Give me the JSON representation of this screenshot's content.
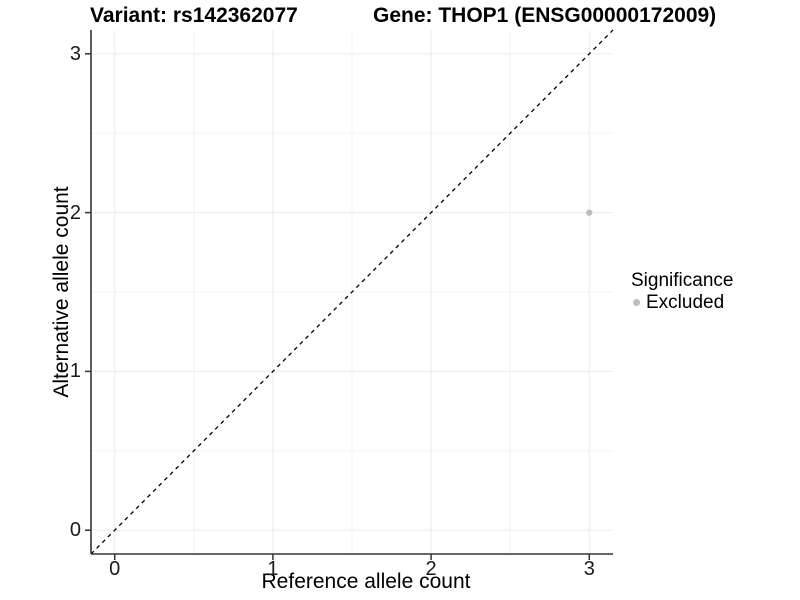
{
  "page": {
    "background": "#ffffff"
  },
  "chart_data": {
    "type": "scatter",
    "title_left": "Variant: rs142362077",
    "title_right": "Gene: THOP1 (ENSG00000172009)",
    "xlabel": "Reference allele count",
    "ylabel": "Alternative allele count",
    "xlim": [
      -0.15,
      3.15
    ],
    "ylim": [
      -0.15,
      3.15
    ],
    "xticks": [
      0,
      1,
      2,
      3
    ],
    "yticks": [
      0,
      1,
      2,
      3
    ],
    "minor_xticks": [
      0.5,
      1.5,
      2.5
    ],
    "minor_yticks": [
      0.5,
      1.5,
      2.5
    ],
    "grid": true,
    "reference_line": {
      "type": "identity",
      "style": "dashed",
      "color": "#000000"
    },
    "series": [
      {
        "name": "Excluded",
        "color": "#bebebe",
        "points": [
          {
            "x": 3,
            "y": 2
          }
        ]
      }
    ],
    "legend": {
      "title": "Significance",
      "position": "right",
      "items": [
        {
          "label": "Excluded",
          "color": "#bebebe"
        }
      ]
    },
    "colors": {
      "grid_major": "#ebebeb",
      "grid_minor": "#f3f3f3",
      "axis_line": "#333333",
      "tick_mark": "#333333",
      "point": "#bebebe"
    }
  }
}
